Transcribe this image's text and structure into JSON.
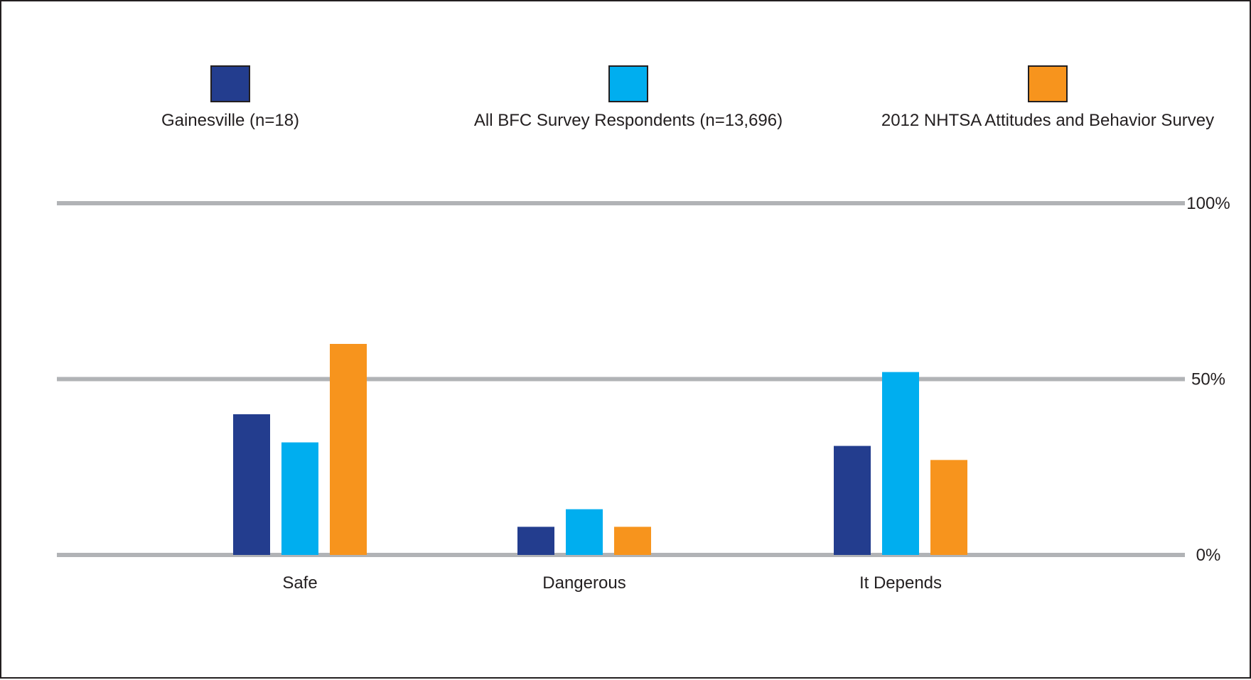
{
  "chart_data": {
    "type": "bar",
    "title": "",
    "xlabel": "",
    "ylabel": "",
    "categories": [
      "Safe",
      "Dangerous",
      "It Depends"
    ],
    "series": [
      {
        "name": "Gainesville (n=18)",
        "color": "#233d8e",
        "values": [
          40,
          8,
          31
        ]
      },
      {
        "name": "All BFC Survey Respondents (n=13,696)",
        "color": "#00aeef",
        "values": [
          32,
          13,
          52
        ]
      },
      {
        "name": "2012 NHTSA Attitudes and Behavior Survey",
        "color": "#f7941d",
        "values": [
          60,
          8,
          27
        ]
      }
    ],
    "ylim": [
      0,
      100
    ],
    "yticks": [
      "0%",
      "50%",
      "100%"
    ],
    "grid": true,
    "legend_position": "top"
  }
}
